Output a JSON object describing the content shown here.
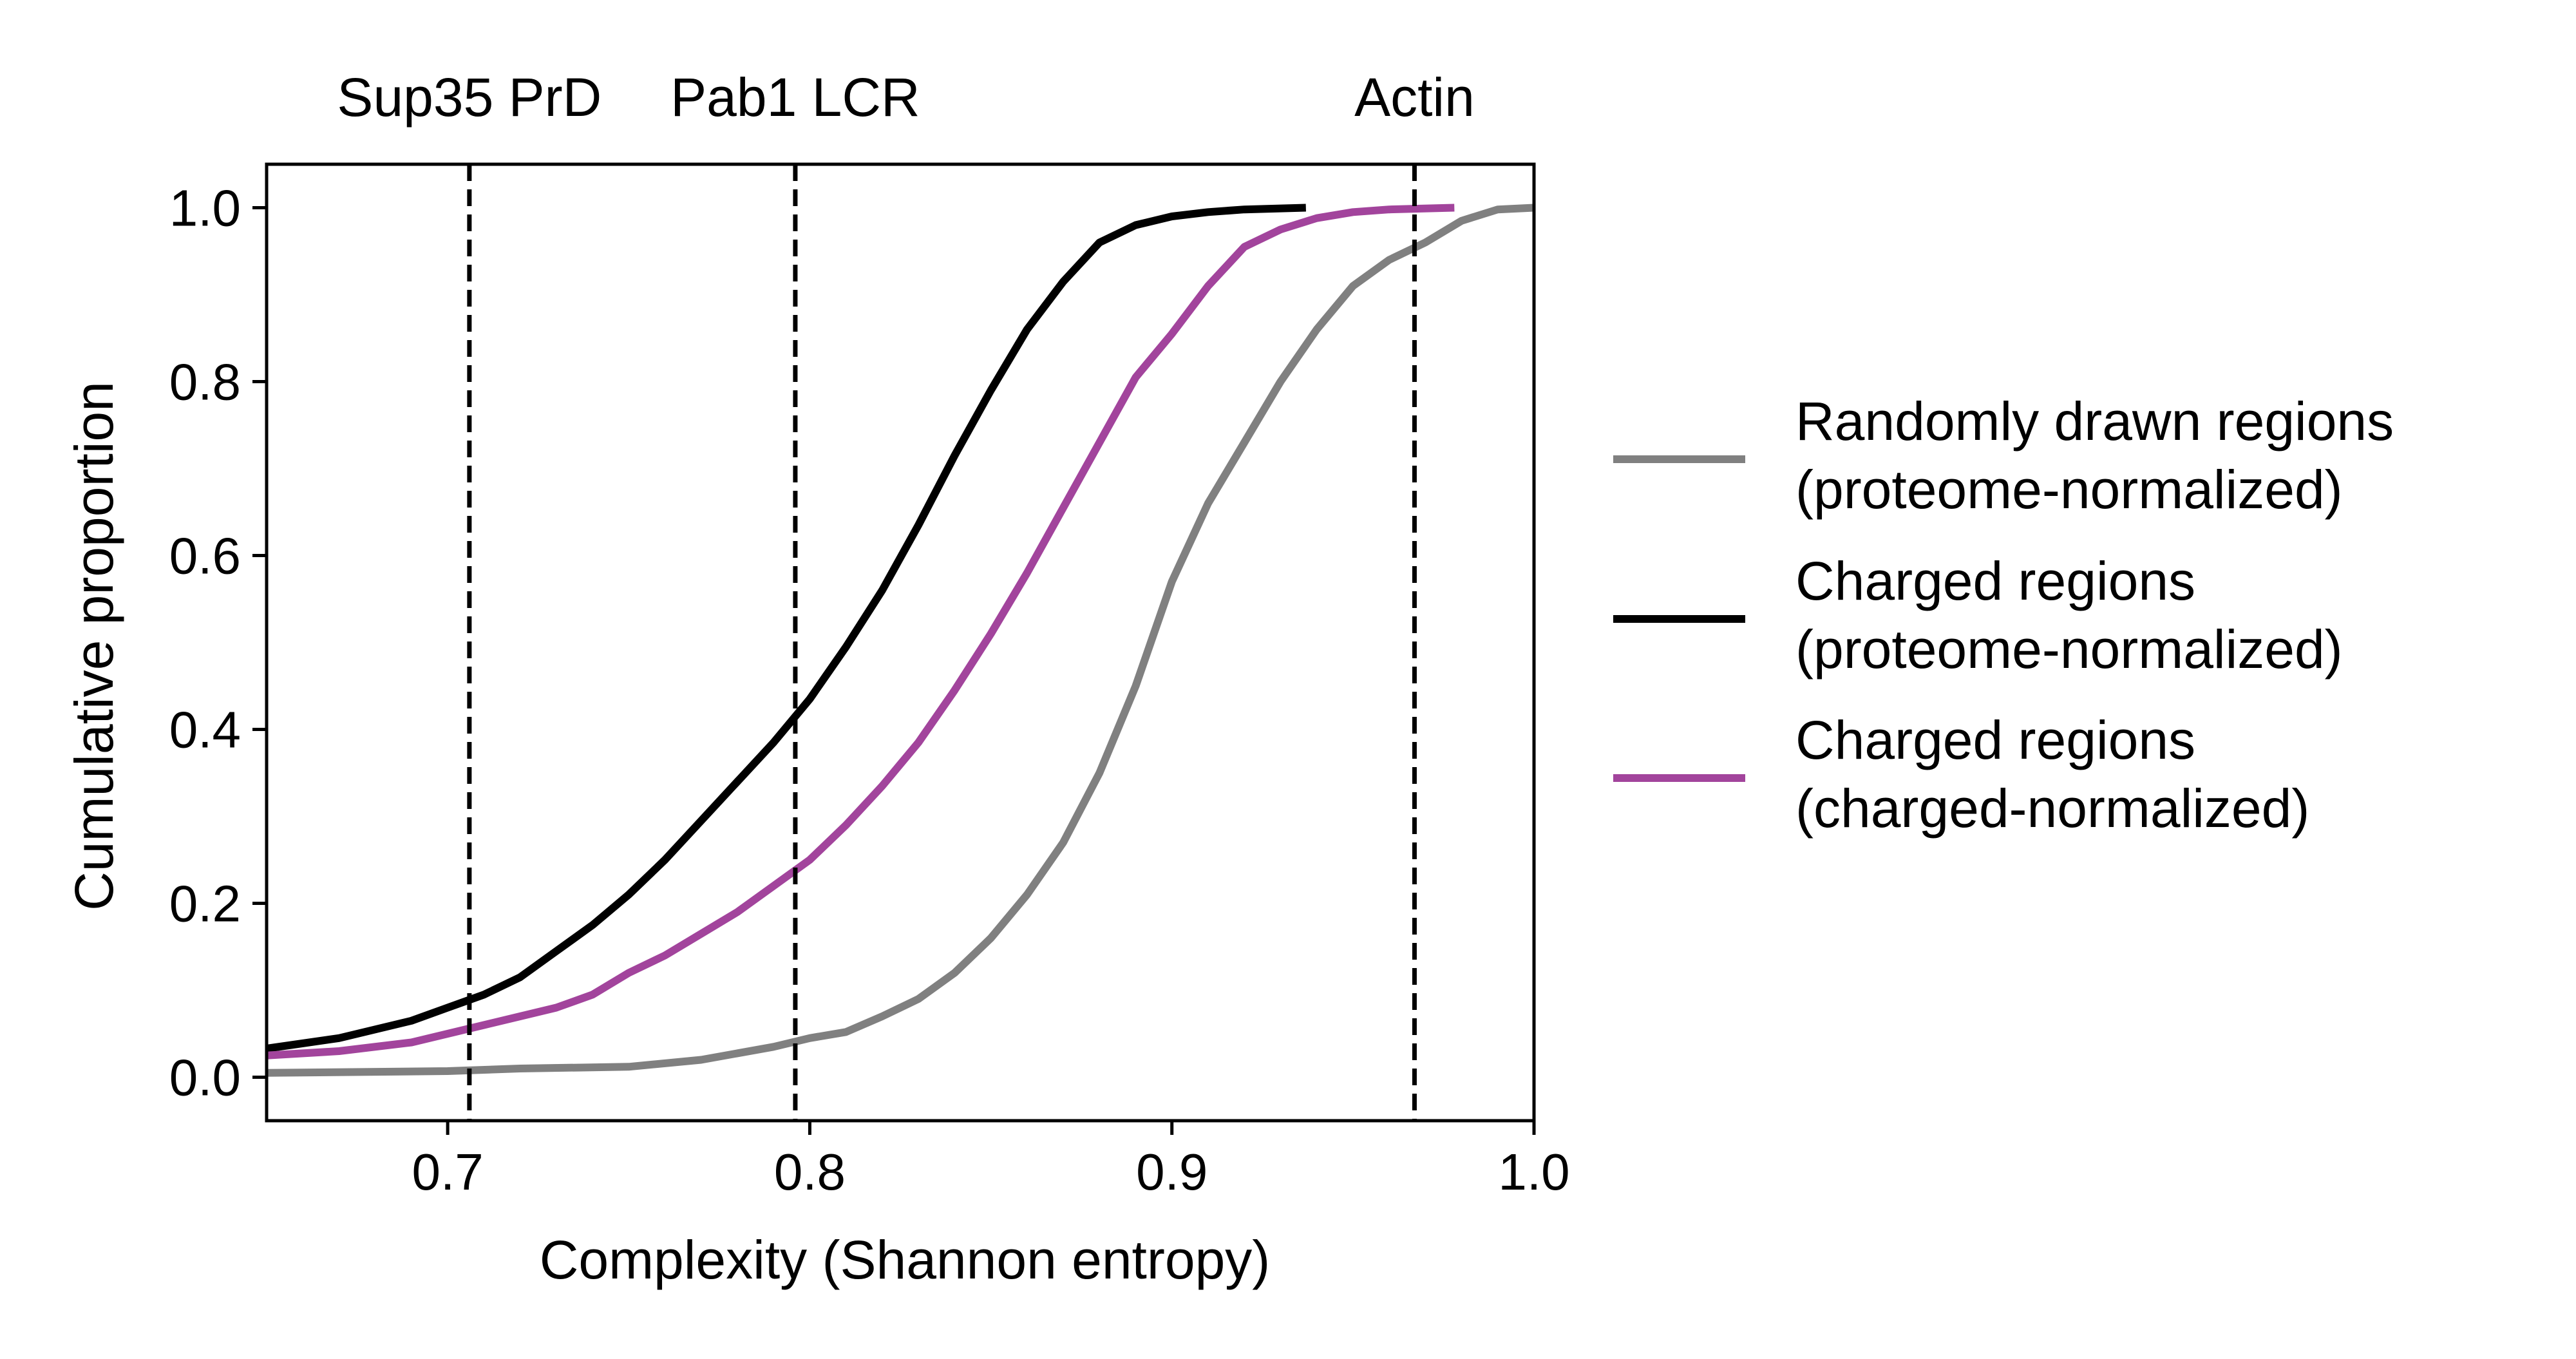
{
  "chart_data": {
    "type": "line",
    "title": "",
    "xlabel": "Complexity (Shannon entropy)",
    "ylabel": "Cumulative proportion",
    "xlim": [
      0.65,
      1.0
    ],
    "ylim": [
      -0.05,
      1.05
    ],
    "xticks": [
      0.7,
      0.8,
      0.9,
      1.0
    ],
    "xtick_labels": [
      "0.7",
      "0.8",
      "0.9",
      "1.0"
    ],
    "yticks": [
      0.0,
      0.2,
      0.4,
      0.6,
      0.8,
      1.0
    ],
    "ytick_labels": [
      "0.0",
      "0.2",
      "0.4",
      "0.6",
      "0.8",
      "1.0"
    ],
    "grid": false,
    "legend_position": "right",
    "reference_lines": [
      {
        "label": "Sup35 PrD",
        "x": 0.706,
        "style": "dashed",
        "color": "#000000"
      },
      {
        "label": "Pab1 LCR",
        "x": 0.796,
        "style": "dashed",
        "color": "#000000"
      },
      {
        "label": "Actin",
        "x": 0.967,
        "style": "dashed",
        "color": "#000000"
      }
    ],
    "series": [
      {
        "name": "Randomly drawn regions\n(proteome-normalized)",
        "name_lines": [
          "Randomly drawn regions",
          "(proteome-normalized)"
        ],
        "color": "#808080",
        "x": [
          0.65,
          0.7,
          0.72,
          0.75,
          0.77,
          0.79,
          0.8,
          0.81,
          0.82,
          0.83,
          0.84,
          0.85,
          0.86,
          0.87,
          0.88,
          0.89,
          0.9,
          0.91,
          0.92,
          0.93,
          0.94,
          0.95,
          0.96,
          0.97,
          0.98,
          0.99,
          1.0
        ],
        "y": [
          0.005,
          0.007,
          0.01,
          0.012,
          0.02,
          0.035,
          0.045,
          0.052,
          0.07,
          0.09,
          0.12,
          0.16,
          0.21,
          0.27,
          0.35,
          0.45,
          0.57,
          0.66,
          0.73,
          0.8,
          0.86,
          0.91,
          0.94,
          0.96,
          0.985,
          0.998,
          1.0
        ]
      },
      {
        "name": "Charged regions\n(proteome-normalized)",
        "name_lines": [
          "Charged regions",
          "(proteome-normalized)"
        ],
        "color": "#000000",
        "x": [
          0.65,
          0.67,
          0.69,
          0.7,
          0.71,
          0.72,
          0.73,
          0.74,
          0.75,
          0.76,
          0.77,
          0.78,
          0.79,
          0.8,
          0.81,
          0.82,
          0.83,
          0.84,
          0.85,
          0.86,
          0.87,
          0.88,
          0.89,
          0.9,
          0.91,
          0.92,
          0.937
        ],
        "y": [
          0.033,
          0.045,
          0.065,
          0.08,
          0.095,
          0.115,
          0.145,
          0.175,
          0.21,
          0.25,
          0.295,
          0.34,
          0.385,
          0.435,
          0.495,
          0.56,
          0.635,
          0.715,
          0.79,
          0.86,
          0.915,
          0.96,
          0.98,
          0.99,
          0.995,
          0.998,
          1.0
        ]
      },
      {
        "name": "Charged regions\n(charged-normalized)",
        "name_lines": [
          "Charged regions",
          "(charged-normalized)"
        ],
        "color": "#a2449c",
        "x": [
          0.65,
          0.67,
          0.69,
          0.7,
          0.71,
          0.72,
          0.73,
          0.74,
          0.75,
          0.76,
          0.77,
          0.78,
          0.79,
          0.8,
          0.81,
          0.82,
          0.83,
          0.84,
          0.85,
          0.86,
          0.87,
          0.88,
          0.89,
          0.9,
          0.91,
          0.92,
          0.93,
          0.94,
          0.95,
          0.96,
          0.978
        ],
        "y": [
          0.025,
          0.03,
          0.04,
          0.05,
          0.06,
          0.07,
          0.08,
          0.095,
          0.12,
          0.14,
          0.165,
          0.19,
          0.22,
          0.25,
          0.29,
          0.335,
          0.385,
          0.445,
          0.51,
          0.58,
          0.655,
          0.73,
          0.805,
          0.855,
          0.91,
          0.955,
          0.975,
          0.988,
          0.995,
          0.998,
          1.0
        ]
      }
    ]
  }
}
